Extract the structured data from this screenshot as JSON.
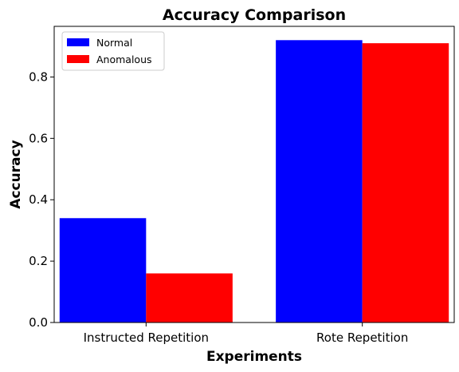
{
  "chart_data": {
    "type": "bar",
    "title": "Accuracy Comparison",
    "xlabel": "Experiments",
    "ylabel": "Accuracy",
    "categories": [
      "Instructed Repetition",
      "Rote Repetition"
    ],
    "series": [
      {
        "name": "Normal",
        "color": "#0000ff",
        "values": [
          0.34,
          0.92
        ]
      },
      {
        "name": "Anomalous",
        "color": "#ff0000",
        "values": [
          0.16,
          0.91
        ]
      }
    ],
    "ylim": [
      0,
      0.965
    ],
    "yticks": [
      0.0,
      0.2,
      0.4,
      0.6,
      0.8
    ],
    "ytick_labels": [
      "0.0",
      "0.2",
      "0.4",
      "0.6",
      "0.8"
    ],
    "grid": false,
    "legend_position": "top-left"
  }
}
